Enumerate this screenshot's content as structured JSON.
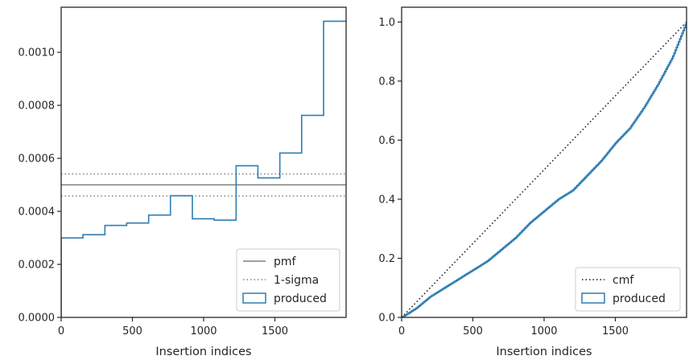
{
  "chart_data": [
    {
      "type": "line",
      "subtype": "histogram-step",
      "xlabel": "Insertion indices",
      "ylabel": "",
      "xlim": [
        0,
        2000
      ],
      "ylim": [
        0,
        0.00117
      ],
      "xticks": [
        0,
        500,
        1000,
        1500
      ],
      "xtick_labels": [
        "0",
        "500",
        "1000",
        "1500"
      ],
      "yticks": [
        0,
        0.0002,
        0.0004,
        0.0006,
        0.0008,
        0.001
      ],
      "ytick_labels": [
        "0.0000",
        "0.0002",
        "0.0004",
        "0.0006",
        "0.0008",
        "0.0010"
      ],
      "grid": false,
      "legend_position": "lower-right",
      "colors": {
        "produced": "#2e7eb2",
        "pmf": "#808080",
        "sigma": "#808080"
      },
      "series": [
        {
          "name": "produced",
          "style": "step",
          "bin_edges": [
            0,
            153,
            307,
            460,
            614,
            767,
            921,
            1074,
            1228,
            1381,
            1535,
            1688,
            1842,
            1995
          ],
          "values": [
            0.0003,
            0.000312,
            0.000347,
            0.000356,
            0.000386,
            0.000459,
            0.000372,
            0.000367,
            0.000572,
            0.000526,
            0.00062,
            0.000762,
            0.001117
          ]
        },
        {
          "name": "pmf",
          "style": "solid",
          "y": 0.0005
        },
        {
          "name": "1-sigma",
          "style": "dotted",
          "y": [
            0.000458,
            0.000541
          ]
        }
      ]
    },
    {
      "type": "line",
      "xlabel": "Insertion indices",
      "ylabel": "",
      "xlim": [
        0,
        2000
      ],
      "ylim": [
        0,
        1.05
      ],
      "xticks": [
        0,
        500,
        1000,
        1500
      ],
      "xtick_labels": [
        "0",
        "500",
        "1000",
        "1500"
      ],
      "yticks": [
        0,
        0.2,
        0.4,
        0.6,
        0.8,
        1.0
      ],
      "ytick_labels": [
        "0.0",
        "0.2",
        "0.4",
        "0.6",
        "0.8",
        "1.0"
      ],
      "grid": false,
      "legend_position": "lower-right",
      "colors": {
        "produced": "#2e7eb2",
        "cmf": "#111111"
      },
      "series": [
        {
          "name": "cmf",
          "style": "dotted",
          "x": [
            0,
            2000
          ],
          "y": [
            0,
            1.0
          ]
        },
        {
          "name": "produced",
          "style": "step",
          "x": [
            0,
            100,
            200,
            300,
            400,
            500,
            600,
            700,
            800,
            900,
            1000,
            1100,
            1200,
            1300,
            1400,
            1500,
            1600,
            1700,
            1800,
            1900,
            2000
          ],
          "y": [
            0,
            0.03,
            0.07,
            0.1,
            0.13,
            0.16,
            0.19,
            0.23,
            0.27,
            0.32,
            0.36,
            0.4,
            0.43,
            0.48,
            0.53,
            0.59,
            0.64,
            0.71,
            0.79,
            0.88,
            1.0
          ]
        }
      ]
    }
  ]
}
